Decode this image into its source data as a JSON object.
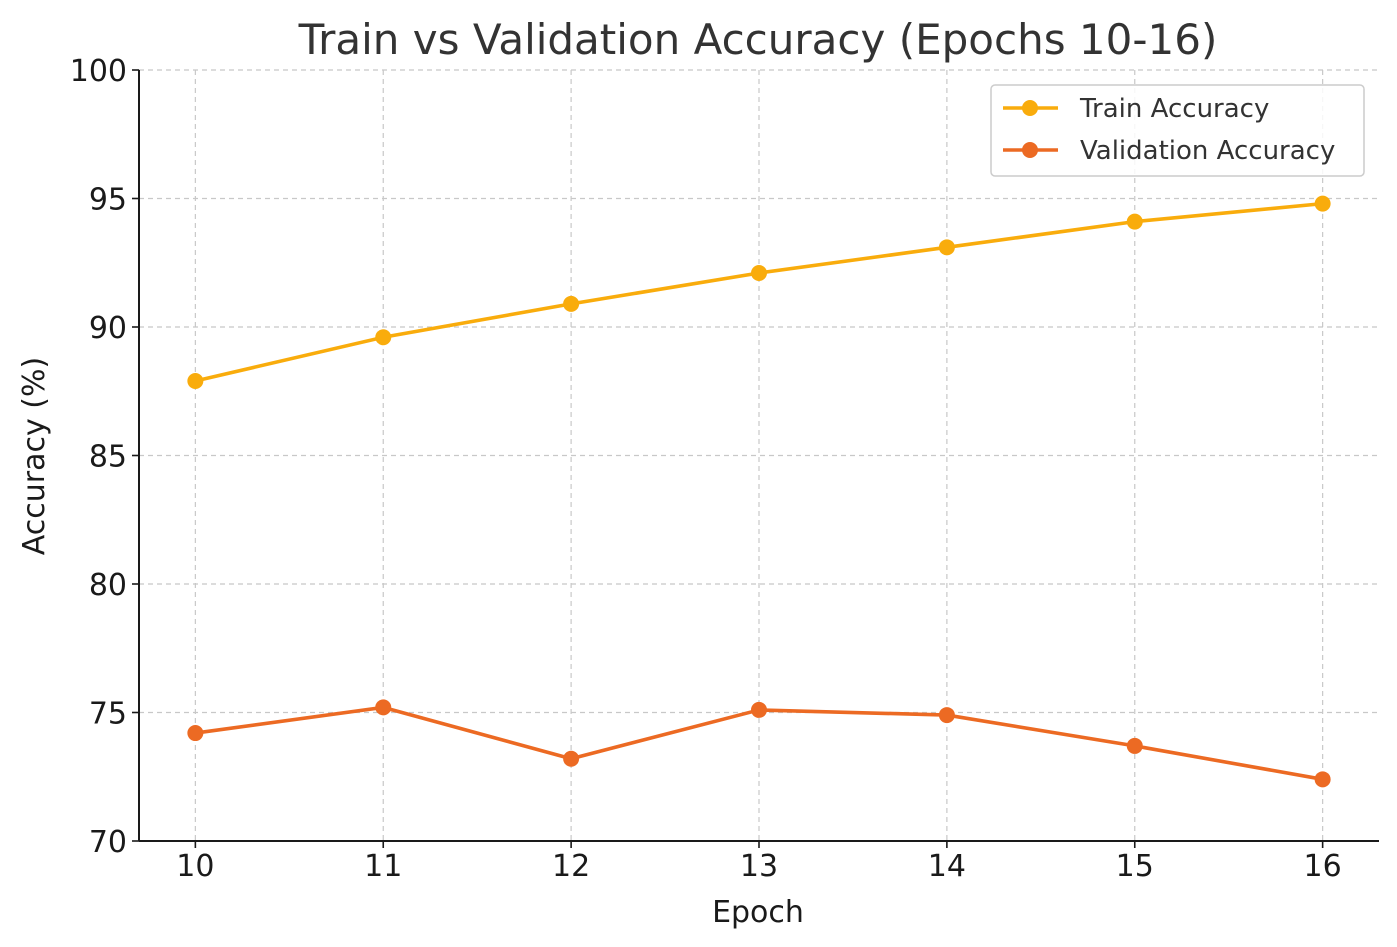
{
  "chart_data": {
    "type": "line",
    "title": "Train vs Validation Accuracy (Epochs 10-16)",
    "xlabel": "Epoch",
    "ylabel": "Accuracy (%)",
    "x": [
      10,
      11,
      12,
      13,
      14,
      15,
      16
    ],
    "x_tick_labels": [
      "10",
      "11",
      "12",
      "13",
      "14",
      "15",
      "16"
    ],
    "y_tick_labels": [
      "70",
      "75",
      "80",
      "85",
      "90",
      "95",
      "100"
    ],
    "ylim": [
      70,
      100
    ],
    "xlim": [
      9.7,
      16.3
    ],
    "grid": true,
    "legend_position": "top-right",
    "series": [
      {
        "name": "Train Accuracy",
        "color": "#F9AC0C",
        "values": [
          87.9,
          89.6,
          90.9,
          92.1,
          93.1,
          94.1,
          94.8
        ]
      },
      {
        "name": "Validation Accuracy",
        "color": "#EC6A23",
        "values": [
          74.2,
          75.2,
          73.2,
          75.1,
          74.9,
          73.7,
          72.4
        ]
      }
    ]
  }
}
